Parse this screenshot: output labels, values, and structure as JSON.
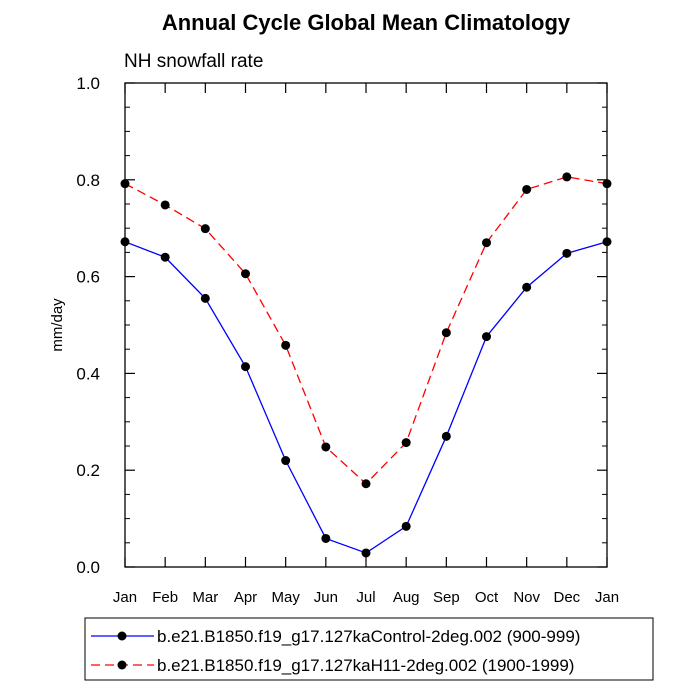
{
  "chart_data": {
    "type": "line",
    "title": "Annual Cycle Global Mean Climatology",
    "subtitle": "NH snowfall rate",
    "ylabel": "mm/day",
    "xlabel": "",
    "ylim": [
      0.0,
      1.0
    ],
    "yticks": [
      0.0,
      0.2,
      0.4,
      0.6,
      0.8,
      1.0
    ],
    "ytick_labels": [
      "0.0",
      "0.2",
      "0.4",
      "0.6",
      "0.8",
      "1.0"
    ],
    "categories": [
      "Jan",
      "Feb",
      "Mar",
      "Apr",
      "May",
      "Jun",
      "Jul",
      "Aug",
      "Sep",
      "Oct",
      "Nov",
      "Dec",
      "Jan"
    ],
    "series": [
      {
        "name": "b.e21.B1850.f19_g17.127kaControl-2deg.002 (900-999)",
        "color": "#0000ff",
        "dash": "solid",
        "values": [
          0.672,
          0.64,
          0.555,
          0.414,
          0.22,
          0.059,
          0.029,
          0.084,
          0.27,
          0.476,
          0.578,
          0.648,
          0.672
        ]
      },
      {
        "name": "b.e21.B1850.f19_g17.127kaH11-2deg.002 (1900-1999)",
        "color": "#ff0000",
        "dash": "dashed",
        "values": [
          0.792,
          0.748,
          0.699,
          0.606,
          0.458,
          0.248,
          0.172,
          0.257,
          0.484,
          0.67,
          0.78,
          0.806,
          0.792
        ]
      }
    ],
    "marker_color": "#000000",
    "legend_position": "bottom"
  }
}
